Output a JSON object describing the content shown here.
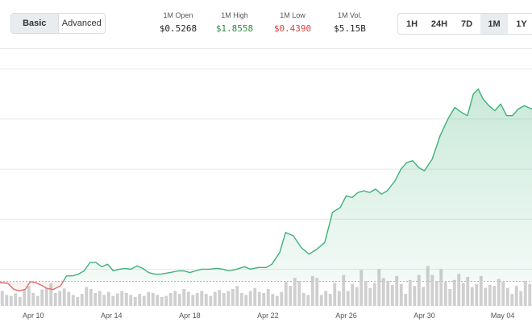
{
  "view_toggle": {
    "basic_label": "Basic",
    "advanced_label": "Advanced",
    "active": "Basic"
  },
  "stats": {
    "open": {
      "label": "1M Open",
      "value": "$0.5268",
      "color": "#222222"
    },
    "high": {
      "label": "1M High",
      "value": "$1.8558",
      "color": "#2e8b3e"
    },
    "low": {
      "label": "1M Low",
      "value": "$0.4390",
      "color": "#d94040"
    },
    "volume": {
      "label": "1M Vol.",
      "value": "$5.15B",
      "color": "#222222"
    }
  },
  "timeframes": {
    "items": [
      "1H",
      "24H",
      "7D",
      "1M",
      "1Y"
    ],
    "active": "1M"
  },
  "colors": {
    "line_up": "#3fb07a",
    "fill_up": "#3fb07a",
    "line_down": "#e06c6c",
    "volume_bar": "#cfcfcf",
    "grid": "#e8e8e8",
    "baseline": "#b0b0b0"
  },
  "chart_data": {
    "type": "line",
    "x_tick_labels": [
      "Apr 10",
      "Apr 14",
      "Apr 18",
      "Apr 22",
      "Apr 26",
      "Apr 30",
      "May 04"
    ],
    "x_day_range": [
      8.3,
      35.5
    ],
    "x_ticks_at_day": [
      10,
      14,
      18,
      22,
      26,
      30,
      34
    ],
    "y_range": [
      0.38,
      1.9
    ],
    "gridlines": [
      0.6,
      0.9,
      1.2,
      1.5,
      1.8
    ],
    "baseline_value": 0.5268,
    "grid": true,
    "price_series": [
      [
        8.3,
        0.52
      ],
      [
        8.7,
        0.515
      ],
      [
        9.0,
        0.48
      ],
      [
        9.3,
        0.47
      ],
      [
        9.6,
        0.48
      ],
      [
        9.85,
        0.525
      ],
      [
        10.1,
        0.52
      ],
      [
        10.4,
        0.505
      ],
      [
        10.7,
        0.485
      ],
      [
        11.0,
        0.478
      ],
      [
        11.4,
        0.5
      ],
      [
        11.7,
        0.56
      ],
      [
        12.0,
        0.56
      ],
      [
        12.3,
        0.57
      ],
      [
        12.6,
        0.59
      ],
      [
        12.9,
        0.64
      ],
      [
        13.2,
        0.64
      ],
      [
        13.5,
        0.615
      ],
      [
        13.8,
        0.63
      ],
      [
        14.1,
        0.59
      ],
      [
        14.4,
        0.6
      ],
      [
        14.7,
        0.605
      ],
      [
        15.0,
        0.6
      ],
      [
        15.3,
        0.62
      ],
      [
        15.6,
        0.605
      ],
      [
        15.9,
        0.58
      ],
      [
        16.2,
        0.57
      ],
      [
        16.5,
        0.57
      ],
      [
        17.0,
        0.58
      ],
      [
        17.4,
        0.59
      ],
      [
        17.7,
        0.59
      ],
      [
        18.0,
        0.58
      ],
      [
        18.3,
        0.59
      ],
      [
        18.6,
        0.6
      ],
      [
        19.0,
        0.6
      ],
      [
        19.4,
        0.605
      ],
      [
        19.7,
        0.6
      ],
      [
        20.0,
        0.59
      ],
      [
        20.4,
        0.6
      ],
      [
        20.8,
        0.615
      ],
      [
        21.1,
        0.6
      ],
      [
        21.5,
        0.61
      ],
      [
        21.9,
        0.61
      ],
      [
        22.2,
        0.63
      ],
      [
        22.6,
        0.7
      ],
      [
        22.9,
        0.82
      ],
      [
        23.3,
        0.8
      ],
      [
        23.7,
        0.73
      ],
      [
        24.1,
        0.69
      ],
      [
        24.5,
        0.72
      ],
      [
        24.9,
        0.76
      ],
      [
        25.3,
        0.94
      ],
      [
        25.7,
        0.97
      ],
      [
        26.0,
        1.04
      ],
      [
        26.3,
        1.03
      ],
      [
        26.6,
        1.06
      ],
      [
        26.9,
        1.07
      ],
      [
        27.2,
        1.06
      ],
      [
        27.5,
        1.08
      ],
      [
        27.8,
        1.05
      ],
      [
        28.1,
        1.07
      ],
      [
        28.5,
        1.13
      ],
      [
        28.8,
        1.2
      ],
      [
        29.1,
        1.24
      ],
      [
        29.4,
        1.25
      ],
      [
        29.7,
        1.21
      ],
      [
        30.0,
        1.19
      ],
      [
        30.4,
        1.26
      ],
      [
        30.8,
        1.4
      ],
      [
        31.2,
        1.5
      ],
      [
        31.55,
        1.57
      ],
      [
        31.9,
        1.54
      ],
      [
        32.2,
        1.52
      ],
      [
        32.5,
        1.65
      ],
      [
        32.75,
        1.68
      ],
      [
        33.0,
        1.62
      ],
      [
        33.3,
        1.58
      ],
      [
        33.6,
        1.55
      ],
      [
        33.9,
        1.59
      ],
      [
        34.2,
        1.52
      ],
      [
        34.5,
        1.52
      ],
      [
        34.8,
        1.56
      ],
      [
        35.1,
        1.58
      ],
      [
        35.3,
        1.57
      ],
      [
        35.5,
        1.56
      ]
    ],
    "volume_series": [
      30,
      22,
      20,
      25,
      18,
      32,
      40,
      26,
      20,
      33,
      36,
      45,
      26,
      30,
      35,
      28,
      22,
      18,
      24,
      38,
      34,
      26,
      30,
      22,
      28,
      20,
      25,
      30,
      26,
      22,
      18,
      24,
      20,
      28,
      26,
      22,
      18,
      20,
      26,
      30,
      24,
      34,
      28,
      22,
      26,
      30,
      24,
      20,
      28,
      32,
      26,
      30,
      34,
      40,
      26,
      22,
      30,
      36,
      28,
      26,
      34,
      24,
      20,
      28,
      48,
      40,
      56,
      50,
      26,
      22,
      60,
      56,
      22,
      30,
      24,
      46,
      30,
      62,
      30,
      44,
      38,
      72,
      50,
      36,
      46,
      74,
      56,
      50,
      42,
      60,
      44,
      24,
      52,
      40,
      62,
      38,
      80,
      62,
      50,
      74,
      48,
      34,
      52,
      64,
      46,
      58,
      38,
      44,
      60,
      36,
      42,
      40,
      54,
      48,
      36,
      24,
      40,
      30,
      50,
      44
    ]
  }
}
